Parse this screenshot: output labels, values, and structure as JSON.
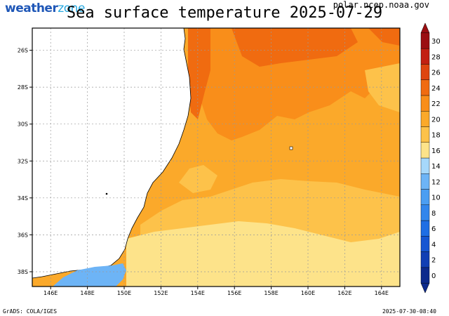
{
  "logo": {
    "text_main": "weather",
    "text_accent": "zone"
  },
  "title": "Sea surface temperature 2025-07-29",
  "source": "polar.ncep.noaa.gov",
  "footer": {
    "credit": "GrADS: COLA/IGES",
    "timestamp": "2025-07-30-08:40"
  },
  "map": {
    "lat_labels": [
      "26S",
      "28S",
      "30S",
      "32S",
      "34S",
      "36S",
      "38S"
    ],
    "lon_labels": [
      "146E",
      "148E",
      "150E",
      "152E",
      "154E",
      "156E",
      "158E",
      "160E",
      "162E",
      "164E"
    ],
    "lon_range": [
      145,
      165
    ],
    "lat_range": [
      -38.8,
      -24.8
    ]
  },
  "colorbar": {
    "labels": [
      "0",
      "2",
      "4",
      "6",
      "8",
      "10",
      "12",
      "14",
      "16",
      "18",
      "20",
      "22",
      "24",
      "26",
      "28",
      "30"
    ],
    "colors": [
      "#0d2a8c",
      "#113fb4",
      "#1656d2",
      "#1f6ee4",
      "#3286ec",
      "#4b9ef2",
      "#6db4f6",
      "#a6d8fb",
      "#fde38a",
      "#fdc24a",
      "#fba92a",
      "#f98e1a",
      "#f06b10",
      "#de4510",
      "#c22012",
      "#9b0f12"
    ]
  },
  "zones": {
    "land": "#ffffff",
    "sst_colors": [
      "#fde38a",
      "#fdc24a",
      "#fba92a",
      "#f98e1a",
      "#f06b10"
    ],
    "land_lake": "#6db4f6"
  }
}
